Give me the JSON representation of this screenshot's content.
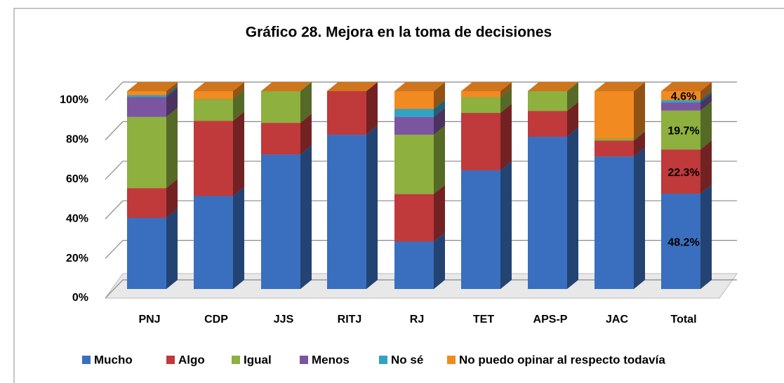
{
  "chart_data": {
    "type": "bar",
    "stacked": true,
    "title": "Gráfico 28. Mejora en la toma de decisiones",
    "categories": [
      "PNJ",
      "CDP",
      "JJS",
      "RITJ",
      "RJ",
      "TET",
      "APS-P",
      "JAC",
      "Total"
    ],
    "series": [
      {
        "name": "Mucho",
        "color": "#3a6fbf",
        "values": [
          36,
          47,
          68,
          78,
          24,
          60,
          77,
          67,
          48.2
        ],
        "value_labels": [
          null,
          null,
          null,
          null,
          null,
          null,
          null,
          null,
          "48.2%"
        ]
      },
      {
        "name": "Algo",
        "color": "#c0393b",
        "values": [
          15,
          38,
          16,
          22,
          24,
          29,
          13,
          8,
          22.3
        ],
        "value_labels": [
          null,
          null,
          null,
          null,
          null,
          null,
          null,
          null,
          "22.3%"
        ]
      },
      {
        "name": "Igual",
        "color": "#8db03f",
        "values": [
          36,
          11,
          16,
          0,
          30,
          8,
          10,
          1,
          19.7
        ],
        "value_labels": [
          null,
          null,
          null,
          null,
          null,
          null,
          null,
          null,
          "19.7%"
        ]
      },
      {
        "name": "Menos",
        "color": "#7b55a0",
        "values": [
          10,
          0,
          0,
          0,
          9,
          0,
          0,
          0,
          4
        ]
      },
      {
        "name": "No sé",
        "color": "#31a3c4",
        "values": [
          1,
          0,
          0,
          0,
          4,
          0,
          0,
          0,
          1.2
        ]
      },
      {
        "name": "No puedo opinar al respecto todavía",
        "color": "#f28a22",
        "values": [
          2,
          4,
          0,
          0,
          9,
          3,
          0,
          24,
          4.6
        ],
        "value_labels": [
          null,
          null,
          null,
          null,
          null,
          null,
          null,
          null,
          "4.6%"
        ]
      }
    ],
    "ylim": [
      0,
      100
    ],
    "yticks": [
      {
        "value": 0,
        "label": "0%"
      },
      {
        "value": 20,
        "label": "20%"
      },
      {
        "value": 40,
        "label": "40%"
      },
      {
        "value": 60,
        "label": "60%"
      },
      {
        "value": 80,
        "label": "80%"
      },
      {
        "value": 100,
        "label": "100%"
      }
    ],
    "grid": true,
    "legend": "bottom"
  }
}
